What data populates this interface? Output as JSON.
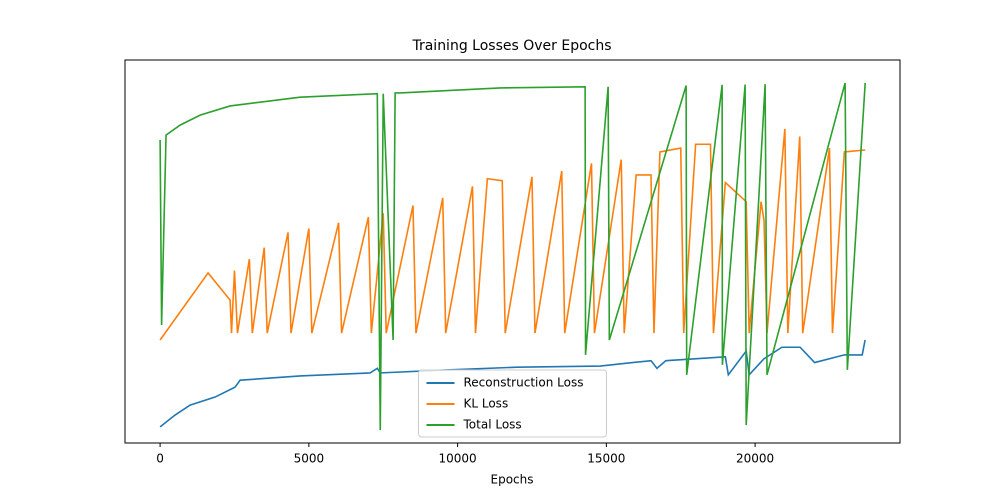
{
  "chart_data": {
    "type": "line",
    "title": "Training Losses Over Epochs",
    "x_label": "Epochs",
    "xlim": [
      -1180,
      24870
    ],
    "xticks": [
      0,
      5000,
      10000,
      15000,
      20000
    ],
    "ylim": [
      0,
      100
    ],
    "legend": "lower center",
    "series": [
      {
        "name": "Reconstruction Loss",
        "color": "#1f77b4",
        "x": [
          0,
          504,
          1008,
          1849,
          2521,
          2689,
          4706,
          7059,
          7300,
          7400,
          9748,
          12000,
          14790,
          16500,
          16700,
          17000,
          19000,
          19100,
          19700,
          19800,
          20300,
          20900,
          21513,
          22000,
          23000,
          23600,
          23697
        ],
        "values": [
          4.2,
          7.3,
          9.9,
          12,
          14.6,
          16.4,
          17.5,
          18.3,
          19.5,
          18.3,
          19.1,
          19.8,
          20.1,
          21.5,
          19.5,
          21.5,
          22.5,
          17.8,
          24,
          17.8,
          22,
          25,
          25,
          21,
          23,
          23,
          26.9
        ]
      },
      {
        "name": "KL Loss",
        "color": "#ff7f0e",
        "x": [
          0,
          1613,
          2353,
          2400,
          2500,
          2600,
          3000,
          3100,
          3500,
          3600,
          4300,
          4400,
          5000,
          5100,
          6000,
          6100,
          7000,
          7100,
          7500,
          7600,
          8500,
          8600,
          9500,
          9600,
          10500,
          10600,
          11000,
          11500,
          11600,
          12500,
          12600,
          13500,
          13600,
          14500,
          14600,
          15500,
          15600,
          16000,
          16500,
          16600,
          16800,
          17500,
          17600,
          18000,
          18500,
          18600,
          19000,
          19700,
          19800,
          20200,
          20300,
          20400,
          21000,
          21100,
          21500,
          21600,
          22500,
          22600,
          23000,
          23700
        ],
        "values": [
          26.9,
          44.4,
          37.3,
          28.7,
          45,
          28.7,
          48,
          28.7,
          51,
          28.7,
          55,
          28.7,
          56,
          28.7,
          57.5,
          28.7,
          59,
          28.7,
          60,
          28.7,
          62,
          28.7,
          64,
          28.7,
          67,
          28.7,
          69,
          68.5,
          28.7,
          69.5,
          28.7,
          71,
          28.7,
          73,
          28.7,
          74,
          28.7,
          70,
          70,
          28.7,
          76,
          77,
          28.7,
          78,
          78,
          28.7,
          68,
          63,
          28.7,
          63,
          58,
          28.7,
          82,
          28.7,
          80,
          28.7,
          77,
          28.7,
          76,
          76.5
        ]
      },
      {
        "name": "Total Loss",
        "color": "#2ca02c",
        "x": [
          0,
          50,
          200,
          672,
          1345,
          2353,
          4706,
          7300,
          7400,
          7500,
          7832,
          7900,
          8067,
          11429,
          14286,
          14300,
          15059,
          15100,
          17681,
          17700,
          18891,
          18900,
          19664,
          19700,
          20336,
          20400,
          23025,
          23100,
          23700
        ],
        "values": [
          79.1,
          30.8,
          80.4,
          83,
          85.6,
          88,
          90.3,
          91.2,
          3.4,
          91.2,
          26.9,
          91.4,
          91.4,
          92.7,
          93,
          23,
          93,
          26.9,
          93.3,
          17.8,
          93.5,
          20.4,
          93.6,
          4.7,
          93.7,
          17.8,
          94,
          19.1,
          94
        ]
      }
    ]
  }
}
